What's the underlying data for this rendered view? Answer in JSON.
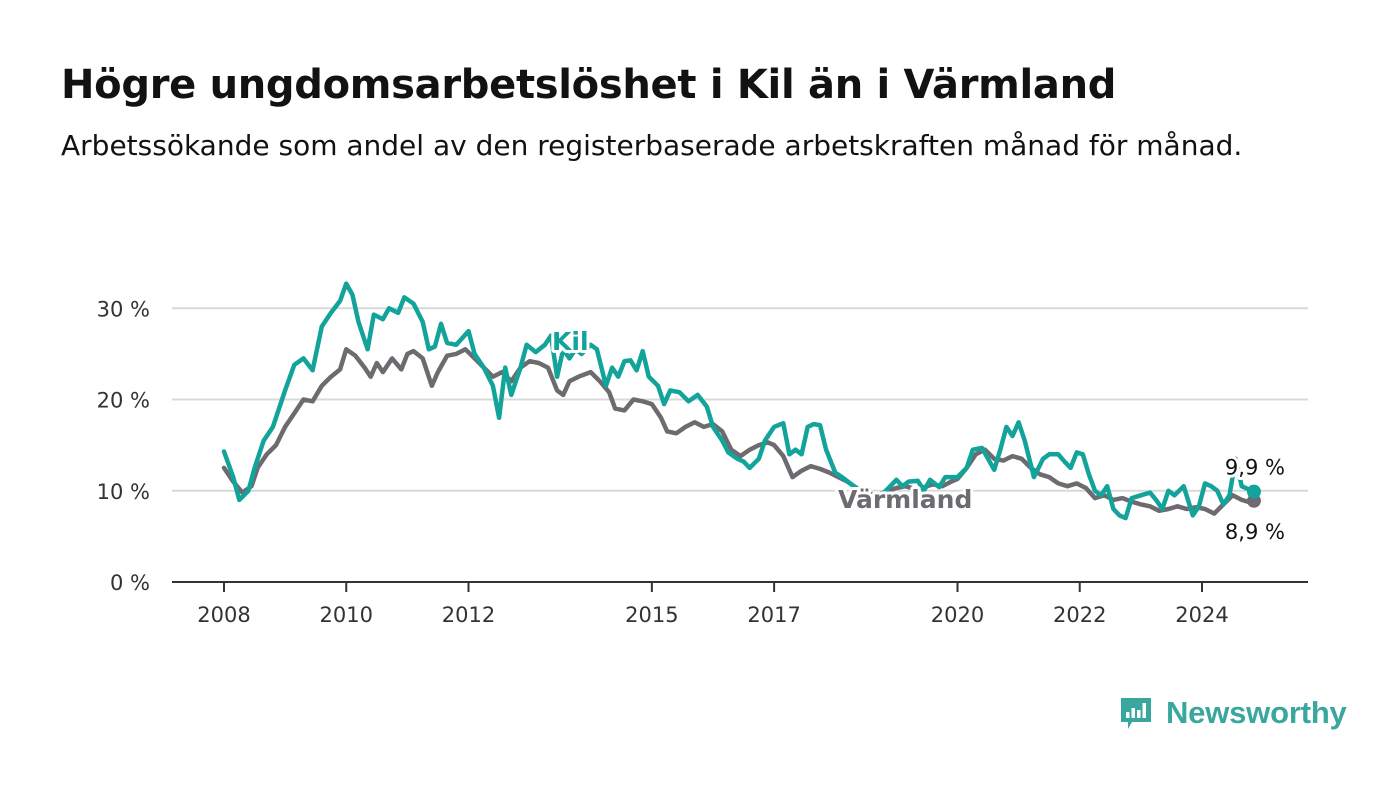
{
  "header": {
    "title": "Högre ungdomsarbetslöshet i Kil än i Värmland",
    "subtitle": "Arbetssökande som andel av den registerbaserade arbetskraften månad för månad."
  },
  "brand": {
    "name": "Newsworthy",
    "logo_icon": "bar-chart-speech-bubble-icon",
    "color": "#3aa79f"
  },
  "chart_data": {
    "type": "line",
    "title": "Högre ungdomsarbetslöshet i Kil än i Värmland",
    "subtitle": "Arbetssökande som andel av den registerbaserade arbetskraften månad för månad.",
    "x_unit": "year",
    "xlim": [
      2008,
      2024.9
    ],
    "ylim": [
      0,
      32
    ],
    "y_ticks": [
      0,
      10,
      20,
      30
    ],
    "y_tick_labels": [
      "0 %",
      "10 %",
      "20 %",
      "30 %"
    ],
    "x_ticks": [
      2008,
      2010,
      2012,
      2015,
      2017,
      2020,
      2022,
      2024
    ],
    "x_tick_labels": [
      "2008",
      "2010",
      "2012",
      "2015",
      "2017",
      "2020",
      "2022",
      "2024"
    ],
    "grid": "horizontal",
    "legend": "inline labels",
    "series": [
      {
        "name": "Kil",
        "color": "#12a39b",
        "end_label": "9,9 %",
        "points": [
          [
            2008.0,
            14.3
          ],
          [
            2008.15,
            11.5
          ],
          [
            2008.25,
            9.0
          ],
          [
            2008.4,
            10.0
          ],
          [
            2008.5,
            12.5
          ],
          [
            2008.65,
            15.5
          ],
          [
            2008.8,
            17.0
          ],
          [
            2009.0,
            21.0
          ],
          [
            2009.15,
            23.8
          ],
          [
            2009.3,
            24.5
          ],
          [
            2009.45,
            23.2
          ],
          [
            2009.6,
            28.0
          ],
          [
            2009.75,
            29.5
          ],
          [
            2009.9,
            30.8
          ],
          [
            2010.0,
            32.7
          ],
          [
            2010.1,
            31.5
          ],
          [
            2010.2,
            28.5
          ],
          [
            2010.35,
            25.5
          ],
          [
            2010.45,
            29.3
          ],
          [
            2010.6,
            28.8
          ],
          [
            2010.7,
            30.0
          ],
          [
            2010.85,
            29.5
          ],
          [
            2010.95,
            31.2
          ],
          [
            2011.1,
            30.5
          ],
          [
            2011.25,
            28.5
          ],
          [
            2011.35,
            25.5
          ],
          [
            2011.45,
            25.8
          ],
          [
            2011.55,
            28.3
          ],
          [
            2011.65,
            26.2
          ],
          [
            2011.8,
            26.0
          ],
          [
            2012.0,
            27.5
          ],
          [
            2012.1,
            25.0
          ],
          [
            2012.25,
            23.5
          ],
          [
            2012.4,
            21.5
          ],
          [
            2012.5,
            18.0
          ],
          [
            2012.6,
            23.5
          ],
          [
            2012.7,
            20.5
          ],
          [
            2012.85,
            23.5
          ],
          [
            2012.95,
            26.0
          ],
          [
            2013.1,
            25.2
          ],
          [
            2013.25,
            26.0
          ],
          [
            2013.35,
            27.0
          ],
          [
            2013.45,
            22.5
          ],
          [
            2013.55,
            25.5
          ],
          [
            2013.65,
            24.5
          ],
          [
            2013.75,
            25.5
          ],
          [
            2013.85,
            25.0
          ],
          [
            2014.0,
            26.0
          ],
          [
            2014.1,
            25.5
          ],
          [
            2014.25,
            21.5
          ],
          [
            2014.35,
            23.5
          ],
          [
            2014.45,
            22.5
          ],
          [
            2014.55,
            24.2
          ],
          [
            2014.65,
            24.3
          ],
          [
            2014.75,
            23.2
          ],
          [
            2014.85,
            25.3
          ],
          [
            2014.95,
            22.5
          ],
          [
            2015.1,
            21.5
          ],
          [
            2015.2,
            19.5
          ],
          [
            2015.3,
            21.0
          ],
          [
            2015.45,
            20.8
          ],
          [
            2015.6,
            19.8
          ],
          [
            2015.75,
            20.5
          ],
          [
            2015.9,
            19.2
          ],
          [
            2016.0,
            17.0
          ],
          [
            2016.15,
            15.5
          ],
          [
            2016.25,
            14.2
          ],
          [
            2016.4,
            13.5
          ],
          [
            2016.5,
            13.2
          ],
          [
            2016.6,
            12.5
          ],
          [
            2016.75,
            13.5
          ],
          [
            2016.85,
            15.5
          ],
          [
            2017.0,
            17.0
          ],
          [
            2017.15,
            17.4
          ],
          [
            2017.25,
            14.0
          ],
          [
            2017.35,
            14.5
          ],
          [
            2017.45,
            14.0
          ],
          [
            2017.55,
            17.0
          ],
          [
            2017.65,
            17.3
          ],
          [
            2017.75,
            17.2
          ],
          [
            2017.85,
            14.5
          ],
          [
            2018.0,
            12.0
          ],
          [
            2018.15,
            11.3
          ],
          [
            2018.3,
            10.5
          ],
          [
            2018.45,
            10.0
          ],
          [
            2018.6,
            9.2
          ],
          [
            2018.75,
            9.5
          ],
          [
            2018.9,
            10.5
          ],
          [
            2019.0,
            11.2
          ],
          [
            2019.1,
            10.5
          ],
          [
            2019.2,
            11.0
          ],
          [
            2019.35,
            11.1
          ],
          [
            2019.45,
            10.0
          ],
          [
            2019.55,
            11.2
          ],
          [
            2019.7,
            10.4
          ],
          [
            2019.8,
            11.5
          ],
          [
            2019.9,
            11.5
          ],
          [
            2020.0,
            11.5
          ],
          [
            2020.15,
            12.5
          ],
          [
            2020.25,
            14.5
          ],
          [
            2020.4,
            14.7
          ],
          [
            2020.5,
            13.5
          ],
          [
            2020.6,
            12.3
          ],
          [
            2020.7,
            14.5
          ],
          [
            2020.8,
            17.0
          ],
          [
            2020.9,
            16.0
          ],
          [
            2021.0,
            17.5
          ],
          [
            2021.1,
            15.5
          ],
          [
            2021.25,
            11.5
          ],
          [
            2021.4,
            13.5
          ],
          [
            2021.5,
            14.0
          ],
          [
            2021.65,
            14.0
          ],
          [
            2021.75,
            13.2
          ],
          [
            2021.85,
            12.5
          ],
          [
            2021.95,
            14.2
          ],
          [
            2022.05,
            14.0
          ],
          [
            2022.15,
            11.8
          ],
          [
            2022.25,
            10.0
          ],
          [
            2022.35,
            9.5
          ],
          [
            2022.45,
            10.5
          ],
          [
            2022.55,
            8.0
          ],
          [
            2022.65,
            7.3
          ],
          [
            2022.75,
            7.0
          ],
          [
            2022.85,
            9.2
          ],
          [
            2023.0,
            9.5
          ],
          [
            2023.15,
            9.8
          ],
          [
            2023.25,
            9.0
          ],
          [
            2023.35,
            8.0
          ],
          [
            2023.45,
            10.0
          ],
          [
            2023.55,
            9.5
          ],
          [
            2023.7,
            10.5
          ],
          [
            2023.85,
            7.3
          ],
          [
            2023.95,
            8.3
          ],
          [
            2024.05,
            10.8
          ],
          [
            2024.15,
            10.5
          ],
          [
            2024.25,
            10.0
          ],
          [
            2024.35,
            8.5
          ],
          [
            2024.45,
            9.5
          ],
          [
            2024.55,
            13.5
          ],
          [
            2024.65,
            10.5
          ],
          [
            2024.75,
            10.2
          ],
          [
            2024.85,
            9.9
          ]
        ]
      },
      {
        "name": "Värmland",
        "color": "#6e6b70",
        "end_label": "8,9 %",
        "points": [
          [
            2008.0,
            12.5
          ],
          [
            2008.15,
            11.0
          ],
          [
            2008.3,
            9.8
          ],
          [
            2008.45,
            10.5
          ],
          [
            2008.55,
            12.5
          ],
          [
            2008.7,
            14.0
          ],
          [
            2008.85,
            15.0
          ],
          [
            2009.0,
            17.0
          ],
          [
            2009.15,
            18.5
          ],
          [
            2009.3,
            20.0
          ],
          [
            2009.45,
            19.8
          ],
          [
            2009.6,
            21.5
          ],
          [
            2009.75,
            22.5
          ],
          [
            2009.9,
            23.3
          ],
          [
            2010.0,
            25.5
          ],
          [
            2010.15,
            24.8
          ],
          [
            2010.3,
            23.5
          ],
          [
            2010.4,
            22.5
          ],
          [
            2010.5,
            24.0
          ],
          [
            2010.6,
            23.0
          ],
          [
            2010.75,
            24.5
          ],
          [
            2010.9,
            23.3
          ],
          [
            2011.0,
            25.0
          ],
          [
            2011.1,
            25.3
          ],
          [
            2011.25,
            24.5
          ],
          [
            2011.4,
            21.5
          ],
          [
            2011.5,
            23.0
          ],
          [
            2011.65,
            24.8
          ],
          [
            2011.8,
            25.0
          ],
          [
            2011.95,
            25.5
          ],
          [
            2012.1,
            24.5
          ],
          [
            2012.25,
            23.5
          ],
          [
            2012.4,
            22.5
          ],
          [
            2012.55,
            23.0
          ],
          [
            2012.7,
            22.0
          ],
          [
            2012.85,
            23.5
          ],
          [
            2013.0,
            24.2
          ],
          [
            2013.15,
            24.0
          ],
          [
            2013.3,
            23.5
          ],
          [
            2013.45,
            21.0
          ],
          [
            2013.55,
            20.5
          ],
          [
            2013.65,
            22.0
          ],
          [
            2013.8,
            22.5
          ],
          [
            2014.0,
            23.0
          ],
          [
            2014.15,
            22.0
          ],
          [
            2014.3,
            20.8
          ],
          [
            2014.4,
            19.0
          ],
          [
            2014.55,
            18.8
          ],
          [
            2014.7,
            20.0
          ],
          [
            2014.85,
            19.8
          ],
          [
            2015.0,
            19.5
          ],
          [
            2015.15,
            18.0
          ],
          [
            2015.25,
            16.5
          ],
          [
            2015.4,
            16.3
          ],
          [
            2015.55,
            17.0
          ],
          [
            2015.7,
            17.5
          ],
          [
            2015.85,
            17.0
          ],
          [
            2016.0,
            17.3
          ],
          [
            2016.15,
            16.5
          ],
          [
            2016.3,
            14.5
          ],
          [
            2016.45,
            13.8
          ],
          [
            2016.6,
            14.5
          ],
          [
            2016.75,
            15.0
          ],
          [
            2016.9,
            15.3
          ],
          [
            2017.0,
            15.0
          ],
          [
            2017.15,
            13.8
          ],
          [
            2017.3,
            11.5
          ],
          [
            2017.45,
            12.2
          ],
          [
            2017.6,
            12.7
          ],
          [
            2017.75,
            12.4
          ],
          [
            2017.9,
            12.0
          ],
          [
            2018.05,
            11.5
          ],
          [
            2018.2,
            11.0
          ],
          [
            2018.35,
            10.3
          ],
          [
            2018.5,
            9.8
          ],
          [
            2018.65,
            9.5
          ],
          [
            2018.8,
            9.8
          ],
          [
            2019.0,
            10.3
          ],
          [
            2019.15,
            10.5
          ],
          [
            2019.3,
            10.2
          ],
          [
            2019.45,
            10.4
          ],
          [
            2019.6,
            10.7
          ],
          [
            2019.75,
            10.5
          ],
          [
            2019.9,
            11.0
          ],
          [
            2020.0,
            11.3
          ],
          [
            2020.15,
            12.5
          ],
          [
            2020.3,
            14.0
          ],
          [
            2020.45,
            14.5
          ],
          [
            2020.6,
            13.5
          ],
          [
            2020.75,
            13.3
          ],
          [
            2020.9,
            13.8
          ],
          [
            2021.05,
            13.5
          ],
          [
            2021.2,
            12.5
          ],
          [
            2021.35,
            11.8
          ],
          [
            2021.5,
            11.5
          ],
          [
            2021.65,
            10.8
          ],
          [
            2021.8,
            10.5
          ],
          [
            2021.95,
            10.8
          ],
          [
            2022.1,
            10.3
          ],
          [
            2022.25,
            9.2
          ],
          [
            2022.4,
            9.5
          ],
          [
            2022.55,
            9.0
          ],
          [
            2022.7,
            9.2
          ],
          [
            2022.85,
            8.8
          ],
          [
            2023.0,
            8.5
          ],
          [
            2023.15,
            8.3
          ],
          [
            2023.3,
            7.8
          ],
          [
            2023.45,
            8.0
          ],
          [
            2023.6,
            8.3
          ],
          [
            2023.75,
            8.0
          ],
          [
            2023.9,
            8.2
          ],
          [
            2024.05,
            8.0
          ],
          [
            2024.2,
            7.5
          ],
          [
            2024.35,
            8.5
          ],
          [
            2024.5,
            9.5
          ],
          [
            2024.65,
            9.0
          ],
          [
            2024.75,
            8.8
          ],
          [
            2024.85,
            8.9
          ]
        ]
      }
    ]
  }
}
